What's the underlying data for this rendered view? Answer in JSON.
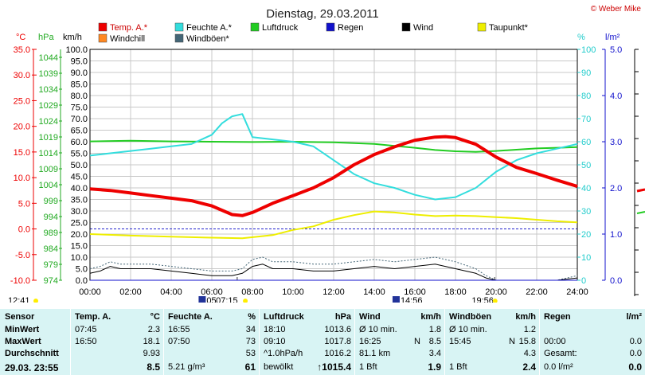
{
  "header": {
    "title": "Dienstag, 29.03.2011",
    "credit": "© Weber Mike"
  },
  "legend": [
    {
      "label": "Temp. A.*",
      "color": "#ee0000"
    },
    {
      "label": "Feuchte A.*",
      "color": "#33dddd"
    },
    {
      "label": "Luftdruck",
      "color": "#22cc22"
    },
    {
      "label": "Regen",
      "color": "#1111cc"
    },
    {
      "label": "Wind",
      "color": "#000000"
    },
    {
      "label": "Taupunkt*",
      "color": "#eeee00"
    },
    {
      "label": "Windchill",
      "color": "#ff8822"
    },
    {
      "label": "Windböen*",
      "color": "#446677"
    }
  ],
  "axes": {
    "temp": {
      "unit": "°C",
      "color": "#ee0000",
      "ticks": [
        "35.0",
        "30.0",
        "25.0",
        "20.0",
        "15.0",
        "10.0",
        "5.0",
        "0.0",
        "-5.0",
        "-10.0"
      ]
    },
    "pressure": {
      "unit": "hPa",
      "color": "#22aa22",
      "ticks": [
        "1044",
        "1039",
        "1034",
        "1029",
        "1024",
        "1019",
        "1014",
        "1009",
        "1004",
        "999",
        "994",
        "989",
        "984",
        "979",
        "974"
      ]
    },
    "wind": {
      "unit": "km/h",
      "color": "#000000",
      "ticks": [
        "100.0",
        "95.0",
        "90.0",
        "85.0",
        "80.0",
        "75.0",
        "70.0",
        "65.0",
        "60.0",
        "55.0",
        "50.0",
        "45.0",
        "40.0",
        "35.0",
        "30.0",
        "25.0",
        "20.0",
        "15.0",
        "10.0",
        "5.0",
        "0.0"
      ]
    },
    "humidity": {
      "unit": "%",
      "color": "#22cccc",
      "ticks": [
        "100",
        "90",
        "80",
        "70",
        "60",
        "50",
        "40",
        "30",
        "20",
        "10",
        "0"
      ]
    },
    "rain": {
      "unit": "l/m²",
      "color": "#1111cc",
      "ticks": [
        "5.0",
        "4.0",
        "3.0",
        "2.0",
        "1.0",
        "0.0"
      ]
    },
    "time": {
      "ticks": [
        "00:00",
        "02:00",
        "04:00",
        "06:00",
        "08:00",
        "10:00",
        "12:00",
        "14:00",
        "16:00",
        "18:00",
        "20:00",
        "22:00",
        "24:00"
      ]
    }
  },
  "sun": {
    "left_time": "12:41",
    "sunrise": "07:15",
    "sunrise_prefix": "05",
    "moon_time": "14:56",
    "sunset": "19:56"
  },
  "chart_data": {
    "type": "line",
    "title": "Dienstag, 29.03.2011",
    "xlabel": "",
    "x_unit": "hours",
    "xlim": [
      0,
      24
    ],
    "series": [
      {
        "name": "Temp. A.*",
        "axis": "temp",
        "ylim": [
          -10,
          35
        ],
        "color": "#ee0000",
        "x": [
          0,
          1,
          2,
          3,
          4,
          5,
          6,
          7,
          7.5,
          8,
          9,
          10,
          11,
          12,
          13,
          14,
          15,
          16,
          17,
          17.5,
          18,
          19,
          20,
          21,
          22,
          23,
          24
        ],
        "y": [
          7.8,
          7.5,
          7.0,
          6.5,
          6.0,
          5.5,
          4.5,
          2.8,
          2.6,
          3.2,
          5.0,
          6.5,
          8.0,
          10.0,
          12.5,
          14.5,
          16.0,
          17.3,
          17.9,
          18.0,
          17.8,
          16.5,
          14.0,
          12.0,
          10.8,
          9.5,
          8.3
        ]
      },
      {
        "name": "Windchill",
        "axis": "temp",
        "ylim": [
          -10,
          35
        ],
        "color": "#ff8822",
        "x": [
          0,
          1,
          2,
          3,
          4,
          5,
          6,
          7,
          7.5,
          8,
          9,
          10,
          11,
          12,
          13,
          14,
          15,
          16,
          17,
          17.5,
          18,
          19,
          20,
          21,
          22,
          23,
          24
        ],
        "y": [
          7.8,
          7.5,
          7.0,
          6.5,
          6.0,
          5.5,
          4.5,
          2.8,
          2.6,
          3.2,
          5.0,
          6.5,
          8.0,
          10.0,
          12.5,
          14.5,
          16.0,
          17.3,
          17.9,
          18.0,
          17.8,
          16.5,
          14.0,
          12.0,
          10.8,
          9.5,
          8.3
        ]
      },
      {
        "name": "Feuchte A.*",
        "axis": "humidity",
        "ylim": [
          0,
          100
        ],
        "color": "#33dddd",
        "x": [
          0,
          1,
          2,
          3,
          4,
          5,
          6,
          6.5,
          7,
          7.5,
          8,
          9,
          10,
          11,
          12,
          13,
          14,
          15,
          16,
          17,
          18,
          19,
          20,
          21,
          22,
          23,
          24
        ],
        "y": [
          54,
          55,
          56,
          57,
          58,
          59,
          63,
          68,
          71,
          72,
          62,
          61,
          60,
          58,
          52,
          46,
          42,
          40,
          37,
          35,
          36,
          40,
          47,
          52,
          55,
          57,
          59
        ]
      },
      {
        "name": "Luftdruck",
        "axis": "pressure",
        "ylim": [
          974,
          1046.5
        ],
        "color": "#22cc22",
        "x": [
          0,
          2,
          4,
          6,
          8,
          10,
          12,
          14,
          15,
          16,
          17,
          18,
          19,
          20,
          21,
          22,
          23,
          24
        ],
        "y": [
          1017.6,
          1017.8,
          1017.6,
          1017.5,
          1017.4,
          1017.5,
          1017.3,
          1016.8,
          1016.2,
          1015.6,
          1014.9,
          1014.5,
          1014.3,
          1014.6,
          1015.0,
          1015.4,
          1015.6,
          1015.8
        ]
      },
      {
        "name": "Taupunkt*",
        "axis": "temp",
        "ylim": [
          -10,
          35
        ],
        "color": "#eeee00",
        "x": [
          0,
          2,
          4,
          6,
          7.5,
          9,
          10,
          11,
          12,
          13,
          14,
          15,
          16,
          17,
          18,
          19,
          20,
          21,
          22,
          23,
          24
        ],
        "y": [
          -1.0,
          -1.3,
          -1.5,
          -1.7,
          -1.8,
          -1.2,
          -0.2,
          0.5,
          1.8,
          2.7,
          3.4,
          3.2,
          2.8,
          2.5,
          2.6,
          2.5,
          2.3,
          2.1,
          1.8,
          1.5,
          1.3
        ]
      },
      {
        "name": "Wind",
        "axis": "wind",
        "ylim": [
          0,
          100
        ],
        "color": "#000000",
        "x": [
          0,
          0.5,
          1,
          1.5,
          2,
          3,
          4,
          5,
          6,
          7,
          7.5,
          8,
          8.5,
          9,
          10,
          11,
          12,
          13,
          14,
          15,
          16,
          17,
          18,
          19,
          19.5,
          20,
          21,
          22,
          23,
          24
        ],
        "y": [
          3,
          4,
          6,
          5,
          5,
          5,
          4,
          3,
          2,
          2,
          3,
          6,
          7,
          5,
          5,
          4,
          4,
          5,
          6,
          5,
          6,
          7,
          5,
          3,
          1,
          0,
          0,
          0,
          0,
          1
        ]
      },
      {
        "name": "Windböen*",
        "axis": "wind",
        "ylim": [
          0,
          100
        ],
        "color": "#446677",
        "x": [
          0,
          0.5,
          1,
          1.5,
          2,
          3,
          4,
          5,
          6,
          7,
          7.5,
          8,
          8.5,
          9,
          10,
          11,
          12,
          13,
          14,
          15,
          16,
          17,
          18,
          19,
          19.5,
          20,
          21,
          22,
          23,
          24
        ],
        "y": [
          5,
          6,
          8,
          7,
          7,
          7,
          6,
          5,
          4,
          4,
          5,
          9,
          10,
          8,
          8,
          7,
          7,
          8,
          9,
          8,
          9,
          10,
          8,
          5,
          2,
          0,
          0,
          0,
          0,
          2
        ]
      },
      {
        "name": "Regen",
        "axis": "rain",
        "ylim": [
          0,
          5
        ],
        "color": "#1111cc",
        "x": [
          0,
          24
        ],
        "y": [
          0,
          0
        ]
      }
    ]
  },
  "stats": {
    "sensor": {
      "header": "Sensor",
      "rows": [
        "MinWert",
        "MaxWert",
        "Durchschnitt"
      ],
      "footer": "29.03. 23:55"
    },
    "temp": {
      "header": "Temp. A.",
      "unit": "°C",
      "rows": [
        {
          "t": "07:45",
          "v": "2.3"
        },
        {
          "t": "16:50",
          "v": "18.1"
        },
        {
          "t": "",
          "v": "9.93"
        }
      ],
      "current": "8.5"
    },
    "humidity": {
      "header": "Feuchte A.",
      "unit": "%",
      "rows": [
        {
          "t": "16:55",
          "v": "34"
        },
        {
          "t": "07:50",
          "v": "73"
        },
        {
          "t": "",
          "v": "53"
        }
      ],
      "current_left": "5.21 g/m³",
      "current": "61"
    },
    "pressure": {
      "header": "Luftdruck",
      "unit": "hPa",
      "rows": [
        {
          "t": "18:10",
          "v": "1013.6"
        },
        {
          "t": "09:10",
          "v": "1017.8"
        },
        {
          "t": "^1.0hPa/h",
          "v": "1016.2"
        }
      ],
      "current_left": "bewölkt",
      "current": "↑1015.4"
    },
    "wind": {
      "header": "Wind",
      "unit": "km/h",
      "rows": [
        {
          "t": "Ø 10 min.",
          "v": "1.8"
        },
        {
          "t": "16:25",
          "m": "N",
          "v": "8.5"
        },
        {
          "t": "81.1 km",
          "v": "3.4"
        }
      ],
      "current_left": "1 Bft",
      "current": "1.9"
    },
    "gust": {
      "header": "Windböen",
      "unit": "km/h",
      "rows": [
        {
          "t": "Ø 10 min.",
          "v": "1.2"
        },
        {
          "t": "15:45",
          "m": "N",
          "v": "15.8"
        },
        {
          "t": "",
          "v": "4.3"
        }
      ],
      "current_left": "1 Bft",
      "current": "2.4"
    },
    "rain": {
      "header": "Regen",
      "unit": "l/m²",
      "rows": [
        {
          "t": "",
          "v": ""
        },
        {
          "t": "00:00",
          "v": "0.0"
        },
        {
          "t": "Gesamt:",
          "v": "0.0"
        }
      ],
      "current_left": "0.0 l/m²",
      "current": "0.0"
    }
  }
}
